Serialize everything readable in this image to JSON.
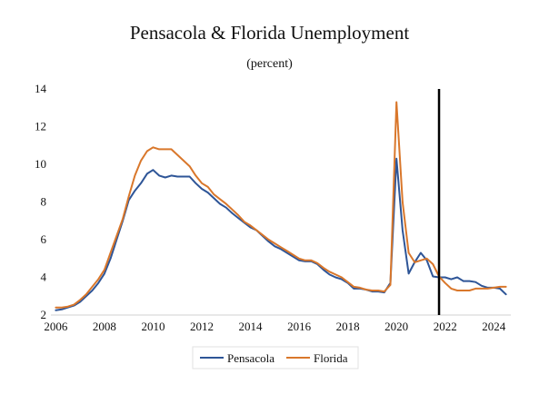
{
  "chart_data": {
    "type": "line",
    "title": "Pensacola & Florida Unemployment",
    "subtitle": "(percent)",
    "xlabel": "",
    "ylabel": "",
    "xlim": [
      2005.8,
      2024.7
    ],
    "ylim": [
      2,
      14
    ],
    "xticks": [
      2006,
      2008,
      2010,
      2012,
      2014,
      2016,
      2018,
      2020,
      2022,
      2024
    ],
    "yticks": [
      2,
      4,
      6,
      8,
      10,
      12,
      14
    ],
    "grid": false,
    "legend_position": "bottom-center",
    "forecast_marker_x": 2021.75,
    "series": [
      {
        "name": "Pensacola",
        "color": "#2e5597",
        "points": [
          [
            2006.0,
            2.25
          ],
          [
            2006.25,
            2.3
          ],
          [
            2006.5,
            2.4
          ],
          [
            2006.75,
            2.5
          ],
          [
            2007.0,
            2.7
          ],
          [
            2007.25,
            3.0
          ],
          [
            2007.5,
            3.3
          ],
          [
            2007.75,
            3.7
          ],
          [
            2008.0,
            4.2
          ],
          [
            2008.25,
            5.0
          ],
          [
            2008.5,
            6.0
          ],
          [
            2008.75,
            7.0
          ],
          [
            2009.0,
            8.1
          ],
          [
            2009.25,
            8.6
          ],
          [
            2009.5,
            9.0
          ],
          [
            2009.75,
            9.5
          ],
          [
            2010.0,
            9.7
          ],
          [
            2010.25,
            9.4
          ],
          [
            2010.5,
            9.3
          ],
          [
            2010.75,
            9.4
          ],
          [
            2011.0,
            9.35
          ],
          [
            2011.25,
            9.35
          ],
          [
            2011.5,
            9.35
          ],
          [
            2011.75,
            9.0
          ],
          [
            2012.0,
            8.7
          ],
          [
            2012.25,
            8.5
          ],
          [
            2012.5,
            8.2
          ],
          [
            2012.75,
            7.9
          ],
          [
            2013.0,
            7.7
          ],
          [
            2013.25,
            7.4
          ],
          [
            2013.5,
            7.15
          ],
          [
            2013.75,
            6.9
          ],
          [
            2014.0,
            6.65
          ],
          [
            2014.25,
            6.5
          ],
          [
            2014.5,
            6.2
          ],
          [
            2014.75,
            5.9
          ],
          [
            2015.0,
            5.65
          ],
          [
            2015.25,
            5.5
          ],
          [
            2015.5,
            5.3
          ],
          [
            2015.75,
            5.1
          ],
          [
            2016.0,
            4.9
          ],
          [
            2016.25,
            4.85
          ],
          [
            2016.5,
            4.85
          ],
          [
            2016.75,
            4.7
          ],
          [
            2017.0,
            4.4
          ],
          [
            2017.25,
            4.15
          ],
          [
            2017.5,
            4.0
          ],
          [
            2017.75,
            3.9
          ],
          [
            2018.0,
            3.7
          ],
          [
            2018.25,
            3.4
          ],
          [
            2018.5,
            3.4
          ],
          [
            2018.75,
            3.35
          ],
          [
            2019.0,
            3.25
          ],
          [
            2019.25,
            3.25
          ],
          [
            2019.5,
            3.2
          ],
          [
            2019.75,
            3.7
          ],
          [
            2020.0,
            10.3
          ],
          [
            2020.25,
            6.5
          ],
          [
            2020.5,
            4.2
          ],
          [
            2020.75,
            4.8
          ],
          [
            2021.0,
            5.3
          ],
          [
            2021.25,
            4.9
          ],
          [
            2021.5,
            4.05
          ],
          [
            2021.75,
            4.0
          ],
          [
            2022.0,
            4.0
          ],
          [
            2022.25,
            3.9
          ],
          [
            2022.5,
            4.0
          ],
          [
            2022.75,
            3.8
          ],
          [
            2023.0,
            3.8
          ],
          [
            2023.25,
            3.75
          ],
          [
            2023.5,
            3.55
          ],
          [
            2023.75,
            3.45
          ],
          [
            2024.0,
            3.45
          ],
          [
            2024.25,
            3.4
          ],
          [
            2024.5,
            3.1
          ]
        ]
      },
      {
        "name": "Florida",
        "color": "#d9772b",
        "points": [
          [
            2006.0,
            2.4
          ],
          [
            2006.25,
            2.4
          ],
          [
            2006.5,
            2.45
          ],
          [
            2006.75,
            2.55
          ],
          [
            2007.0,
            2.8
          ],
          [
            2007.25,
            3.1
          ],
          [
            2007.5,
            3.5
          ],
          [
            2007.75,
            3.9
          ],
          [
            2008.0,
            4.4
          ],
          [
            2008.25,
            5.3
          ],
          [
            2008.5,
            6.2
          ],
          [
            2008.75,
            7.1
          ],
          [
            2009.0,
            8.3
          ],
          [
            2009.25,
            9.4
          ],
          [
            2009.5,
            10.2
          ],
          [
            2009.75,
            10.7
          ],
          [
            2010.0,
            10.9
          ],
          [
            2010.25,
            10.8
          ],
          [
            2010.5,
            10.8
          ],
          [
            2010.75,
            10.8
          ],
          [
            2011.0,
            10.5
          ],
          [
            2011.25,
            10.2
          ],
          [
            2011.5,
            9.9
          ],
          [
            2011.75,
            9.4
          ],
          [
            2012.0,
            9.0
          ],
          [
            2012.25,
            8.8
          ],
          [
            2012.5,
            8.4
          ],
          [
            2012.75,
            8.15
          ],
          [
            2013.0,
            7.9
          ],
          [
            2013.25,
            7.6
          ],
          [
            2013.5,
            7.3
          ],
          [
            2013.75,
            6.95
          ],
          [
            2014.0,
            6.75
          ],
          [
            2014.25,
            6.5
          ],
          [
            2014.5,
            6.25
          ],
          [
            2014.75,
            6.0
          ],
          [
            2015.0,
            5.8
          ],
          [
            2015.25,
            5.6
          ],
          [
            2015.5,
            5.4
          ],
          [
            2015.75,
            5.2
          ],
          [
            2016.0,
            5.0
          ],
          [
            2016.25,
            4.9
          ],
          [
            2016.5,
            4.9
          ],
          [
            2016.75,
            4.75
          ],
          [
            2017.0,
            4.5
          ],
          [
            2017.25,
            4.3
          ],
          [
            2017.5,
            4.15
          ],
          [
            2017.75,
            4.0
          ],
          [
            2018.0,
            3.75
          ],
          [
            2018.25,
            3.5
          ],
          [
            2018.5,
            3.45
          ],
          [
            2018.75,
            3.35
          ],
          [
            2019.0,
            3.3
          ],
          [
            2019.25,
            3.3
          ],
          [
            2019.5,
            3.25
          ],
          [
            2019.75,
            3.6
          ],
          [
            2020.0,
            13.3
          ],
          [
            2020.25,
            8.0
          ],
          [
            2020.5,
            5.3
          ],
          [
            2020.75,
            4.8
          ],
          [
            2021.0,
            4.9
          ],
          [
            2021.25,
            5.0
          ],
          [
            2021.5,
            4.7
          ],
          [
            2021.75,
            4.05
          ],
          [
            2022.0,
            3.7
          ],
          [
            2022.25,
            3.4
          ],
          [
            2022.5,
            3.3
          ],
          [
            2022.75,
            3.3
          ],
          [
            2023.0,
            3.3
          ],
          [
            2023.25,
            3.4
          ],
          [
            2023.5,
            3.4
          ],
          [
            2023.75,
            3.4
          ],
          [
            2024.0,
            3.45
          ],
          [
            2024.25,
            3.5
          ],
          [
            2024.5,
            3.5
          ]
        ]
      }
    ]
  }
}
